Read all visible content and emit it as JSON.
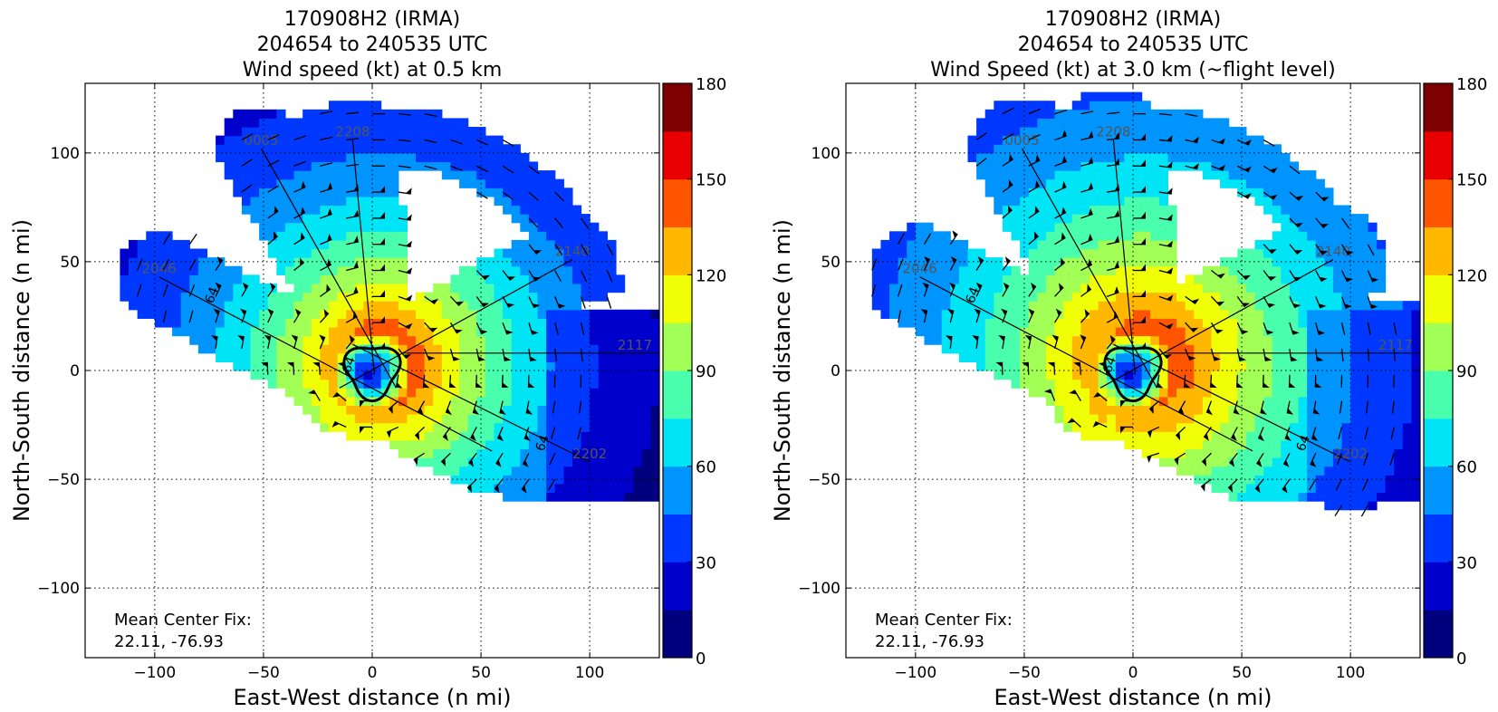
{
  "chart_data": [
    {
      "type": "heatmap",
      "title_lines": [
        "170908H2 (IRMA)",
        "204654 to 240535 UTC",
        "Wind speed (kt) at 0.5 km"
      ],
      "xlabel": "East-West distance (n mi)",
      "ylabel": "North-South distance (n mi)",
      "xlim": [
        -132,
        132
      ],
      "ylim": [
        -132,
        132
      ],
      "xticks": [
        -100,
        -50,
        0,
        50,
        100
      ],
      "yticks": [
        -100,
        -50,
        0,
        50,
        100
      ],
      "xtick_labels": [
        "−100",
        "−50",
        "0",
        "50",
        "100"
      ],
      "ytick_labels": [
        "−100",
        "−50",
        "0",
        "50",
        "100"
      ],
      "grid": true,
      "annotation": [
        "Mean Center Fix:",
        "22.11, -76.93"
      ],
      "colorbar": {
        "levels": [
          0,
          15,
          30,
          45,
          60,
          75,
          90,
          105,
          120,
          135,
          150,
          165,
          180
        ],
        "tick_values": [
          0,
          30,
          60,
          90,
          120,
          150,
          180
        ],
        "tick_labels": [
          "0",
          "30",
          "60",
          "90",
          "120",
          "150",
          "180"
        ],
        "colors": [
          "#00007f",
          "#0000cd",
          "#0038ff",
          "#0094ff",
          "#00e5f5",
          "#49ffad",
          "#a2ff56",
          "#f0ff06",
          "#ffb700",
          "#ff5500",
          "#e80000",
          "#7f0000"
        ]
      },
      "contour_label": "64",
      "flight_legs": [
        {
          "label": "0005",
          "start": [
            -51,
            102
          ],
          "end": [
            11,
            -8
          ]
        },
        {
          "label": "2208",
          "start": [
            -9,
            106
          ],
          "end": [
            1,
            -2
          ]
        },
        {
          "label": "2046",
          "start": [
            -98,
            43
          ],
          "end": [
            55,
            -37
          ]
        },
        {
          "label": "2140",
          "start": [
            92,
            51
          ],
          "end": [
            -15,
            -8
          ]
        },
        {
          "label": "2202",
          "start": [
            100,
            -42
          ],
          "end": [
            -9,
            12
          ]
        },
        {
          "label": "2117",
          "start": [
            132,
            8
          ],
          "end": [
            14,
            8
          ]
        }
      ]
    },
    {
      "type": "heatmap",
      "title_lines": [
        "170908H2 (IRMA)",
        "204654 to 240535 UTC",
        "Wind Speed (kt) at 3.0 km (~flight level)"
      ],
      "xlabel": "East-West distance (n mi)",
      "ylabel": "North-South distance (n mi)",
      "xlim": [
        -132,
        132
      ],
      "ylim": [
        -132,
        132
      ],
      "xticks": [
        -100,
        -50,
        0,
        50,
        100
      ],
      "yticks": [
        -100,
        -50,
        0,
        50,
        100
      ],
      "xtick_labels": [
        "−100",
        "−50",
        "0",
        "50",
        "100"
      ],
      "ytick_labels": [
        "−100",
        "−50",
        "0",
        "50",
        "100"
      ],
      "grid": true,
      "annotation": [
        "Mean Center Fix:",
        "22.11, -76.93"
      ],
      "colorbar": {
        "levels": [
          0,
          15,
          30,
          45,
          60,
          75,
          90,
          105,
          120,
          135,
          150,
          165,
          180
        ],
        "tick_values": [
          0,
          30,
          60,
          90,
          120,
          150,
          180
        ],
        "tick_labels": [
          "0",
          "30",
          "60",
          "90",
          "120",
          "150",
          "180"
        ],
        "colors": [
          "#00007f",
          "#0000cd",
          "#0038ff",
          "#0094ff",
          "#00e5f5",
          "#49ffad",
          "#a2ff56",
          "#f0ff06",
          "#ffb700",
          "#ff5500",
          "#e80000",
          "#7f0000"
        ]
      },
      "contour_label": "64",
      "flight_legs": [
        {
          "label": "0005",
          "start": [
            -51,
            102
          ],
          "end": [
            11,
            -8
          ]
        },
        {
          "label": "2208",
          "start": [
            -9,
            106
          ],
          "end": [
            1,
            -2
          ]
        },
        {
          "label": "2046",
          "start": [
            -98,
            43
          ],
          "end": [
            55,
            -37
          ]
        },
        {
          "label": "2140",
          "start": [
            92,
            51
          ],
          "end": [
            -15,
            -8
          ]
        },
        {
          "label": "2202",
          "start": [
            100,
            -42
          ],
          "end": [
            -9,
            12
          ]
        },
        {
          "label": "2117",
          "start": [
            132,
            8
          ],
          "end": [
            14,
            8
          ]
        }
      ]
    }
  ]
}
